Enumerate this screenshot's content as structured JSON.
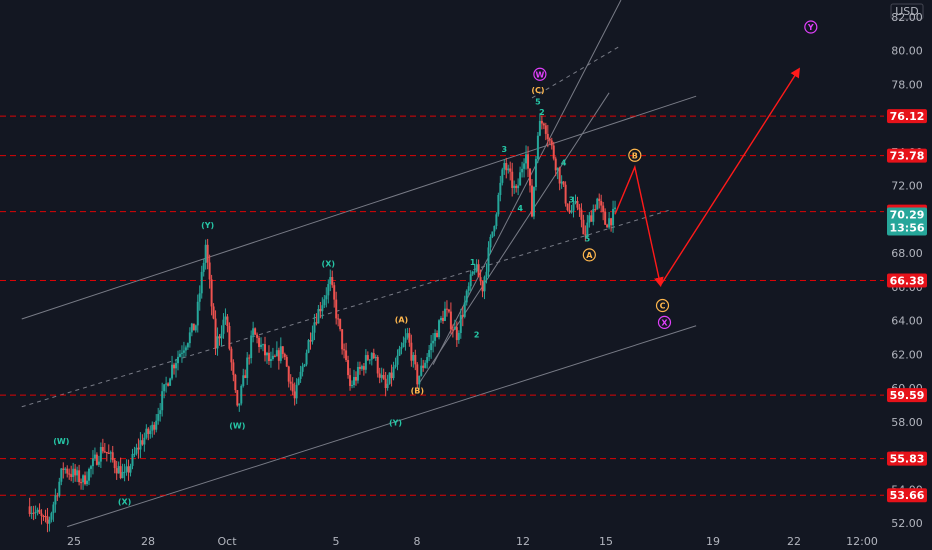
{
  "currency": "USD",
  "price_box": {
    "price": "70.29",
    "countdown": "13:56"
  },
  "chart_data": {
    "type": "candlestick",
    "title": "",
    "y_ticks": [
      "52.00",
      "54.00",
      "56.00",
      "58.00",
      "60.00",
      "62.00",
      "64.00",
      "66.00",
      "68.00",
      "70.00",
      "72.00",
      "74.00",
      "76.00",
      "78.00",
      "80.00",
      "82.00"
    ],
    "x_ticks": [
      "25",
      "28",
      "Oct",
      "5",
      "8",
      "12",
      "15",
      "19",
      "22",
      "12:00"
    ],
    "ylim": [
      51.6,
      83.0
    ],
    "grid": false,
    "levels": [
      {
        "value": 76.12,
        "label": "76.12"
      },
      {
        "value": 73.78,
        "label": "73.78"
      },
      {
        "value": 70.46,
        "label": "70.46"
      },
      {
        "value": 66.38,
        "label": "66.38"
      },
      {
        "value": 59.59,
        "label": "59.59"
      },
      {
        "value": 55.83,
        "label": "55.83"
      },
      {
        "value": 53.66,
        "label": "53.66"
      }
    ],
    "last_price": 70.29,
    "price_path": [
      {
        "x": 22.0,
        "y": 53.0
      },
      {
        "x": 22.9,
        "y": 51.9
      },
      {
        "x": 23.7,
        "y": 55.3
      },
      {
        "x": 24.7,
        "y": 54.5
      },
      {
        "x": 25.7,
        "y": 56.5
      },
      {
        "x": 26.8,
        "y": 54.7
      },
      {
        "x": 27.6,
        "y": 56.8
      },
      {
        "x": 28.2,
        "y": 57.6
      },
      {
        "x": 29.2,
        "y": 61.3
      },
      {
        "x": 30.4,
        "y": 63.8
      },
      {
        "x": 30.9,
        "y": 68.5
      },
      {
        "x": 31.4,
        "y": 62.5
      },
      {
        "x": 31.9,
        "y": 64.3
      },
      {
        "x": 32.5,
        "y": 58.6
      },
      {
        "x": 33.3,
        "y": 63.3
      },
      {
        "x": 34.2,
        "y": 61.4
      },
      {
        "x": 34.8,
        "y": 62.3
      },
      {
        "x": 35.4,
        "y": 59.3
      },
      {
        "x": 36.3,
        "y": 63.7
      },
      {
        "x": 37.2,
        "y": 66.3
      },
      {
        "x": 38.2,
        "y": 60.1
      },
      {
        "x": 39.3,
        "y": 62.2
      },
      {
        "x": 40.0,
        "y": 59.9
      },
      {
        "x": 41.1,
        "y": 63.1
      },
      {
        "x": 41.6,
        "y": 60.5
      },
      {
        "x": 43.0,
        "y": 64.6
      },
      {
        "x": 43.6,
        "y": 63.2
      },
      {
        "x": 44.5,
        "y": 67.2
      },
      {
        "x": 44.9,
        "y": 66.0
      },
      {
        "x": 46.0,
        "y": 73.3
      },
      {
        "x": 46.6,
        "y": 71.5
      },
      {
        "x": 47.1,
        "y": 74.3
      },
      {
        "x": 47.4,
        "y": 70.3
      },
      {
        "x": 47.7,
        "y": 75.4
      },
      {
        "x": 48.0,
        "y": 75.9
      },
      {
        "x": 48.8,
        "y": 72.5
      },
      {
        "x": 49.3,
        "y": 70.4
      },
      {
        "x": 49.8,
        "y": 70.9
      },
      {
        "x": 50.0,
        "y": 68.8
      },
      {
        "x": 50.3,
        "y": 70.0
      },
      {
        "x": 50.7,
        "y": 71.2
      },
      {
        "x": 51.1,
        "y": 69.8
      },
      {
        "x": 51.6,
        "y": 70.3
      }
    ],
    "projections": [
      {
        "name": "Projection B",
        "points": [
          {
            "x": 51.6,
            "y": 70.3
          },
          {
            "x": 52.6,
            "y": 73.1
          },
          {
            "x": 53.9,
            "y": 66.1
          }
        ]
      },
      {
        "name": "Projection Y",
        "points": [
          {
            "x": 53.9,
            "y": 66.1
          },
          {
            "x": 60.9,
            "y": 78.9
          }
        ]
      }
    ],
    "annotations": [
      {
        "text": "(W)",
        "x": 23.6,
        "y": 56.7,
        "color": "#26c6a6"
      },
      {
        "text": "(X)",
        "x": 26.8,
        "y": 53.1,
        "color": "#26c6a6"
      },
      {
        "text": "(Y)",
        "x": 31.0,
        "y": 69.5,
        "color": "#26c6a6"
      },
      {
        "text": "(W)",
        "x": 32.5,
        "y": 57.6,
        "color": "#26c6a6"
      },
      {
        "text": "(X)",
        "x": 37.1,
        "y": 67.2,
        "color": "#26c6a6"
      },
      {
        "text": "(Y)",
        "x": 40.5,
        "y": 57.8,
        "color": "#26c6a6"
      },
      {
        "text": "(A)",
        "x": 40.8,
        "y": 63.9,
        "color": "#ffb74d"
      },
      {
        "text": "(B)",
        "x": 41.6,
        "y": 59.7,
        "color": "#ffb74d"
      },
      {
        "text": "(C)",
        "x": 47.7,
        "y": 77.5,
        "color": "#ffb74d"
      },
      {
        "text": "1",
        "x": 44.4,
        "y": 67.3,
        "color": "#26c6a6"
      },
      {
        "text": "2",
        "x": 44.6,
        "y": 63.0,
        "color": "#26c6a6"
      },
      {
        "text": "3",
        "x": 46.0,
        "y": 74.0,
        "color": "#26c6a6"
      },
      {
        "text": "4",
        "x": 46.8,
        "y": 70.5,
        "color": "#26c6a6"
      },
      {
        "text": "5",
        "x": 47.7,
        "y": 76.8,
        "color": "#26c6a6"
      },
      {
        "text": "2",
        "x": 47.9,
        "y": 76.2,
        "color": "#26c6a6"
      },
      {
        "text": "4",
        "x": 49.0,
        "y": 73.2,
        "color": "#26c6a6"
      },
      {
        "text": "3",
        "x": 49.4,
        "y": 71.0,
        "color": "#26c6a6"
      },
      {
        "text": "5",
        "x": 50.2,
        "y": 68.7,
        "color": "#26c6a6"
      }
    ],
    "circled_labels": [
      {
        "text": "W",
        "x": 47.8,
        "y": 78.6,
        "color": "#e040fb"
      },
      {
        "text": "B",
        "x": 52.6,
        "y": 73.8,
        "color": "#ffb74d"
      },
      {
        "text": "A",
        "x": 50.3,
        "y": 67.9,
        "color": "#ffb74d"
      },
      {
        "text": "C",
        "x": 54.0,
        "y": 64.9,
        "color": "#ffb74d"
      },
      {
        "text": "X",
        "x": 54.1,
        "y": 63.9,
        "color": "#e040fb"
      },
      {
        "text": "Y",
        "x": 61.5,
        "y": 81.4,
        "color": "#e040fb"
      }
    ],
    "channel_lines": [
      {
        "name": "upper-channel",
        "style": "solid",
        "x1": 21.6,
        "y1": 64.1,
        "x2": 55.7,
        "y2": 77.3
      },
      {
        "name": "mid-channel",
        "style": "dashed",
        "x1": 21.6,
        "y1": 58.9,
        "x2": 54.5,
        "y2": 70.6
      },
      {
        "name": "lower-channel",
        "style": "solid",
        "x1": 23.9,
        "y1": 51.8,
        "x2": 55.7,
        "y2": 63.7
      },
      {
        "name": "steep-upper",
        "style": "solid",
        "x1": 42.4,
        "y1": 61.4,
        "x2": 51.9,
        "y2": 83.0
      },
      {
        "name": "steep-dashed",
        "style": "dashed",
        "x1": 47.4,
        "y1": 77.2,
        "x2": 51.9,
        "y2": 80.3
      },
      {
        "name": "steep-lower",
        "style": "solid",
        "x1": 41.7,
        "y1": 60.3,
        "x2": 51.3,
        "y2": 77.5
      }
    ]
  },
  "colors": {
    "background": "#131722",
    "up": "#26a69a",
    "down": "#ef5350",
    "level_line": "#ff0000",
    "level_box": "#e6121a",
    "price_box": "#26a69a",
    "axis_text": "#b2b5be",
    "channel": "#787b86",
    "projection": "#ff1a1a"
  }
}
